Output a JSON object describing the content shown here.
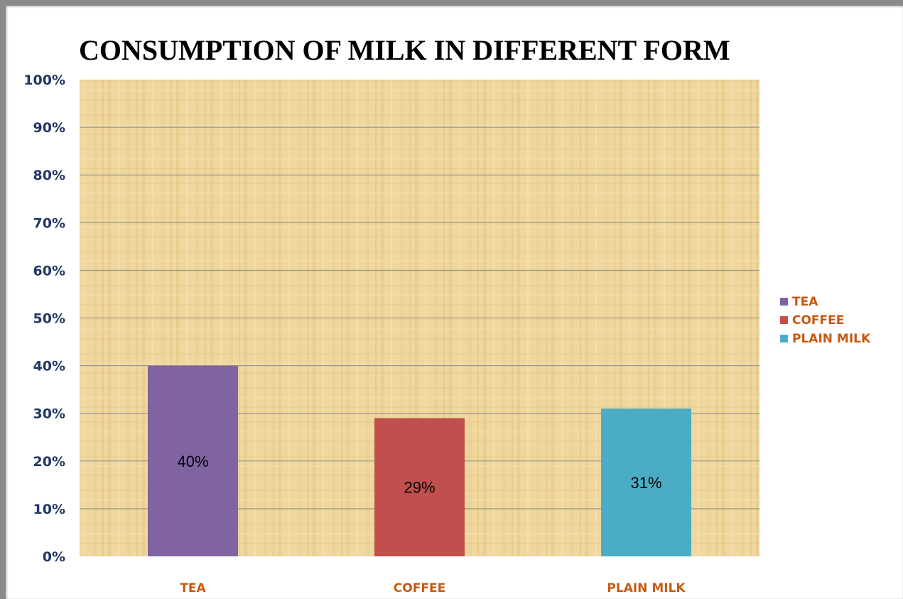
{
  "chart_data": {
    "type": "bar",
    "title": "CONSUMPTION OF MILK IN DIFFERENT FORM",
    "categories": [
      "TEA",
      "COFFEE",
      "PLAIN MILK"
    ],
    "values": [
      40,
      29,
      31
    ],
    "value_labels": [
      "40%",
      "29%",
      "31%"
    ],
    "colors": [
      "#8064a2",
      "#c0504d",
      "#4bacc6"
    ],
    "ylim": [
      0,
      100
    ],
    "yticks": [
      "0%",
      "10%",
      "20%",
      "30%",
      "40%",
      "50%",
      "60%",
      "70%",
      "80%",
      "90%",
      "100%"
    ],
    "grid": true,
    "legend": {
      "position": "right",
      "entries": [
        "TEA",
        "COFFEE",
        "PLAIN MILK"
      ]
    },
    "label_color": "#c55a11",
    "plot_background": "#efd79e"
  }
}
